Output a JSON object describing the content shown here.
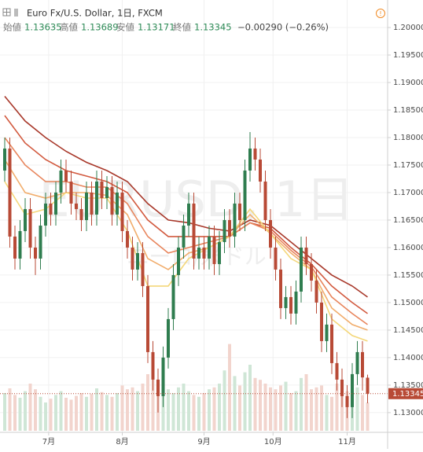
{
  "header": {
    "title": "Euro Fx/U.S. Dollar, 1日, FXCM",
    "ohlc": [
      [
        "始値",
        "1.13635"
      ],
      [
        "高値",
        "1.13689"
      ],
      [
        "安値",
        "1.13171"
      ],
      [
        "終値",
        "1.13345"
      ]
    ],
    "change": "−0.00290 (−0.26%)"
  },
  "watermark": {
    "symbol": "EURUSD, 1日",
    "name": "ユーロ/米ドル"
  },
  "chart_data": {
    "type": "candlestick",
    "months": [
      "7月",
      "8月",
      "9月",
      "10月",
      "11月"
    ],
    "candles": [
      [
        1.174,
        1.18,
        1.172,
        1.178
      ],
      [
        1.178,
        1.18,
        1.16,
        1.162
      ],
      [
        1.162,
        1.164,
        1.156,
        1.158
      ],
      [
        1.158,
        1.165,
        1.156,
        1.163
      ],
      [
        1.163,
        1.169,
        1.161,
        1.167
      ],
      [
        1.167,
        1.169,
        1.158,
        1.16
      ],
      [
        1.16,
        1.162,
        1.155,
        1.158
      ],
      [
        1.158,
        1.166,
        1.156,
        1.164
      ],
      [
        1.164,
        1.17,
        1.162,
        1.168
      ],
      [
        1.168,
        1.17,
        1.164,
        1.166
      ],
      [
        1.166,
        1.172,
        1.164,
        1.17
      ],
      [
        1.17,
        1.176,
        1.168,
        1.174
      ],
      [
        1.174,
        1.176,
        1.17,
        1.172
      ],
      [
        1.172,
        1.174,
        1.166,
        1.168
      ],
      [
        1.168,
        1.17,
        1.165,
        1.167
      ],
      [
        1.167,
        1.169,
        1.163,
        1.165
      ],
      [
        1.165,
        1.172,
        1.163,
        1.17
      ],
      [
        1.17,
        1.172,
        1.164,
        1.166
      ],
      [
        1.166,
        1.174,
        1.164,
        1.172
      ],
      [
        1.172,
        1.174,
        1.167,
        1.169
      ],
      [
        1.169,
        1.173,
        1.167,
        1.171
      ],
      [
        1.171,
        1.173,
        1.164,
        1.166
      ],
      [
        1.166,
        1.172,
        1.164,
        1.17
      ],
      [
        1.17,
        1.172,
        1.161,
        1.163
      ],
      [
        1.163,
        1.165,
        1.158,
        1.16
      ],
      [
        1.16,
        1.162,
        1.154,
        1.156
      ],
      [
        1.156,
        1.161,
        1.154,
        1.159
      ],
      [
        1.159,
        1.161,
        1.151,
        1.153
      ],
      [
        1.153,
        1.155,
        1.139,
        1.141
      ],
      [
        1.141,
        1.143,
        1.134,
        1.136
      ],
      [
        1.136,
        1.138,
        1.13,
        1.133
      ],
      [
        1.133,
        1.142,
        1.131,
        1.14
      ],
      [
        1.14,
        1.149,
        1.138,
        1.147
      ],
      [
        1.147,
        1.157,
        1.145,
        1.155
      ],
      [
        1.155,
        1.162,
        1.153,
        1.16
      ],
      [
        1.16,
        1.166,
        1.158,
        1.164
      ],
      [
        1.164,
        1.17,
        1.162,
        1.168
      ],
      [
        1.168,
        1.17,
        1.156,
        1.158
      ],
      [
        1.158,
        1.162,
        1.156,
        1.16
      ],
      [
        1.16,
        1.162,
        1.156,
        1.158
      ],
      [
        1.158,
        1.164,
        1.156,
        1.162
      ],
      [
        1.162,
        1.164,
        1.155,
        1.157
      ],
      [
        1.157,
        1.163,
        1.155,
        1.161
      ],
      [
        1.161,
        1.167,
        1.159,
        1.165
      ],
      [
        1.165,
        1.167,
        1.16,
        1.162
      ],
      [
        1.162,
        1.17,
        1.16,
        1.168
      ],
      [
        1.168,
        1.17,
        1.163,
        1.165
      ],
      [
        1.165,
        1.176,
        1.163,
        1.174
      ],
      [
        1.174,
        1.181,
        1.172,
        1.178
      ],
      [
        1.178,
        1.18,
        1.174,
        1.176
      ],
      [
        1.176,
        1.178,
        1.17,
        1.172
      ],
      [
        1.172,
        1.174,
        1.163,
        1.165
      ],
      [
        1.165,
        1.167,
        1.158,
        1.16
      ],
      [
        1.16,
        1.162,
        1.154,
        1.156
      ],
      [
        1.156,
        1.158,
        1.147,
        1.149
      ],
      [
        1.149,
        1.153,
        1.147,
        1.151
      ],
      [
        1.151,
        1.153,
        1.146,
        1.148
      ],
      [
        1.148,
        1.154,
        1.146,
        1.152
      ],
      [
        1.152,
        1.162,
        1.15,
        1.16
      ],
      [
        1.16,
        1.162,
        1.155,
        1.157
      ],
      [
        1.157,
        1.159,
        1.152,
        1.154
      ],
      [
        1.154,
        1.156,
        1.148,
        1.15
      ],
      [
        1.15,
        1.152,
        1.141,
        1.143
      ],
      [
        1.143,
        1.148,
        1.141,
        1.146
      ],
      [
        1.146,
        1.148,
        1.137,
        1.139
      ],
      [
        1.139,
        1.141,
        1.134,
        1.136
      ],
      [
        1.136,
        1.138,
        1.131,
        1.133
      ],
      [
        1.133,
        1.135,
        1.129,
        1.131
      ],
      [
        1.131,
        1.139,
        1.129,
        1.137
      ],
      [
        1.137,
        1.143,
        1.135,
        1.141
      ],
      [
        1.141,
        1.143,
        1.134,
        1.1364
      ],
      [
        1.13635,
        1.13689,
        1.13171,
        1.13345
      ]
    ],
    "up_color": "#2f7d4f",
    "down_color": "#b84a36",
    "volume": [
      40,
      45,
      38,
      35,
      42,
      50,
      44,
      36,
      30,
      34,
      38,
      42,
      35,
      33,
      37,
      40,
      36,
      39,
      45,
      41,
      38,
      36,
      40,
      48,
      44,
      46,
      42,
      50,
      60,
      55,
      52,
      48,
      44,
      40,
      46,
      50,
      42,
      38,
      36,
      40,
      44,
      46,
      50,
      64,
      92,
      58,
      48,
      62,
      70,
      56,
      54,
      50,
      46,
      44,
      48,
      52,
      40,
      42,
      56,
      60,
      44,
      46,
      48,
      38,
      36,
      50,
      44,
      42,
      40,
      46,
      38,
      30
    ],
    "ma_x": [
      0,
      4,
      8,
      12,
      16,
      20,
      24,
      28,
      32,
      36,
      40,
      44,
      48,
      52,
      56,
      60,
      64,
      68,
      71
    ],
    "ma": [
      {
        "color": "#a8382a",
        "values": [
          1.1875,
          1.183,
          1.18,
          1.1775,
          1.1755,
          1.174,
          1.172,
          1.168,
          1.165,
          1.1645,
          1.1635,
          1.163,
          1.165,
          1.164,
          1.161,
          1.158,
          1.155,
          1.153,
          1.151
        ]
      },
      {
        "color": "#d25a3f",
        "values": [
          1.184,
          1.179,
          1.176,
          1.174,
          1.173,
          1.172,
          1.17,
          1.165,
          1.162,
          1.162,
          1.162,
          1.162,
          1.1645,
          1.1635,
          1.16,
          1.157,
          1.153,
          1.15,
          1.148
        ]
      },
      {
        "color": "#e8855c",
        "values": [
          1.18,
          1.175,
          1.172,
          1.172,
          1.171,
          1.171,
          1.168,
          1.162,
          1.159,
          1.16,
          1.161,
          1.162,
          1.1645,
          1.163,
          1.1595,
          1.1565,
          1.151,
          1.148,
          1.146
        ]
      },
      {
        "color": "#f1ad6c",
        "values": [
          1.176,
          1.17,
          1.169,
          1.17,
          1.17,
          1.1695,
          1.166,
          1.158,
          1.156,
          1.159,
          1.16,
          1.162,
          1.166,
          1.1625,
          1.159,
          1.156,
          1.149,
          1.146,
          1.145
        ]
      },
      {
        "color": "#f4d77a",
        "values": [
          1.172,
          1.166,
          1.167,
          1.17,
          1.169,
          1.169,
          1.163,
          1.153,
          1.153,
          1.158,
          1.16,
          1.162,
          1.167,
          1.1625,
          1.158,
          1.156,
          1.147,
          1.144,
          1.143
        ]
      }
    ],
    "ylim": [
      1.1267,
      1.205
    ],
    "yticks": [
      {
        "value": 1.13,
        "label": "1.13000"
      },
      {
        "value": 1.135,
        "label": "1.13500"
      },
      {
        "value": 1.14,
        "label": "1.14000"
      },
      {
        "value": 1.145,
        "label": "1.14500"
      },
      {
        "value": 1.15,
        "label": "1.15000"
      },
      {
        "value": 1.155,
        "label": "1.15500"
      },
      {
        "value": 1.16,
        "label": "1.16000"
      },
      {
        "value": 1.165,
        "label": "1.16500"
      },
      {
        "value": 1.17,
        "label": "1.17000"
      },
      {
        "value": 1.175,
        "label": "1.17500"
      },
      {
        "value": 1.18,
        "label": "1.18000"
      },
      {
        "value": 1.185,
        "label": "1.18500"
      },
      {
        "value": 1.19,
        "label": "1.19000"
      },
      {
        "value": 1.195,
        "label": "1.19500"
      },
      {
        "value": 1.2,
        "label": "1.20000"
      }
    ],
    "last_price": {
      "value": 1.13345,
      "label": "1.13345"
    },
    "grid": true
  }
}
